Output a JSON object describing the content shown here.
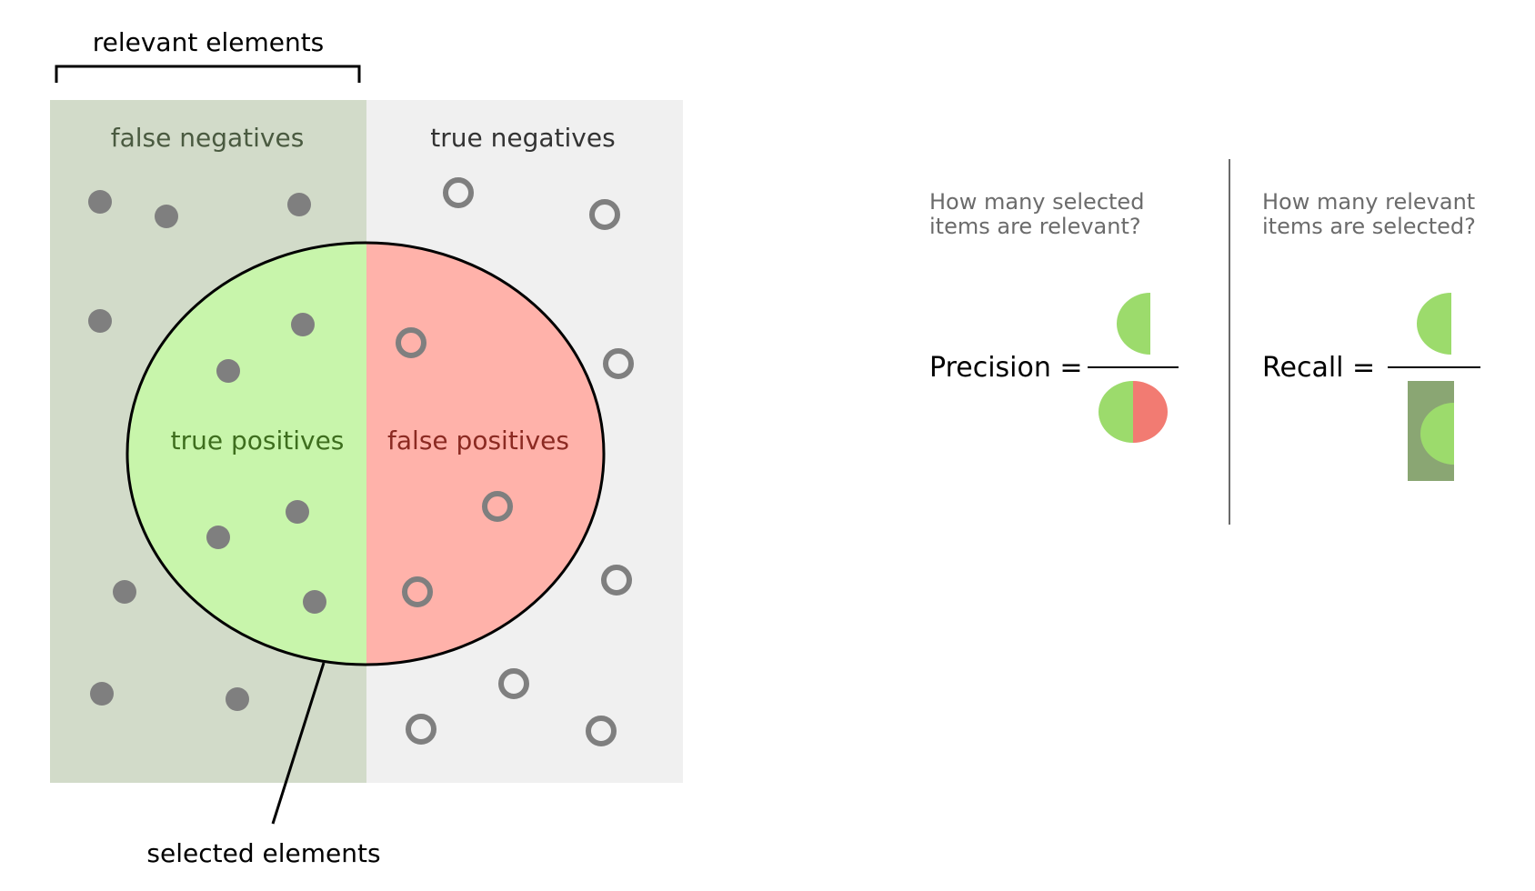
{
  "labels": {
    "relevant_elements": "relevant elements",
    "selected_elements": "selected elements",
    "false_negatives": "false negatives",
    "true_negatives": "true negatives",
    "true_positives": "true positives",
    "false_positives": "false positives"
  },
  "precision": {
    "question_line1": "How many selected",
    "question_line2": "items are relevant?",
    "label": "Precision ="
  },
  "recall": {
    "question_line1": "How many relevant",
    "question_line2": "items are selected?",
    "label": "Recall ="
  },
  "colors": {
    "relevant_region": "#d2dbc9",
    "negative_region": "#f0f0f0",
    "true_positive": "#c8f5ab",
    "false_positive": "#ffb2aa",
    "fraction_green": "#9cdb6c",
    "fraction_red": "#f27b72",
    "fraction_dark_green": "#8aa673",
    "dot": "#7f7f7f"
  }
}
